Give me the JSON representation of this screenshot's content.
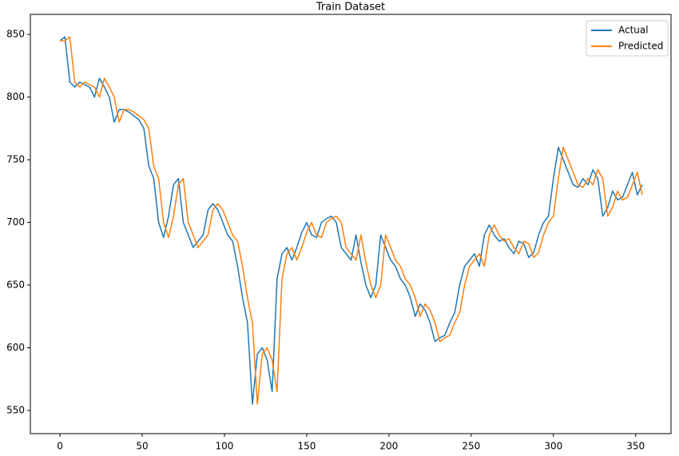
{
  "chart_data": {
    "type": "line",
    "title": "Train Dataset",
    "x": [
      0,
      3,
      6,
      9,
      12,
      15,
      18,
      21,
      24,
      27,
      30,
      33,
      36,
      39,
      42,
      45,
      48,
      51,
      54,
      57,
      60,
      63,
      66,
      69,
      72,
      75,
      78,
      81,
      84,
      87,
      90,
      93,
      96,
      99,
      102,
      105,
      108,
      111,
      114,
      117,
      120,
      123,
      126,
      129,
      132,
      135,
      138,
      141,
      144,
      147,
      150,
      153,
      156,
      159,
      162,
      165,
      168,
      171,
      174,
      177,
      180,
      183,
      186,
      189,
      192,
      195,
      198,
      201,
      204,
      207,
      210,
      213,
      216,
      219,
      222,
      225,
      228,
      231,
      234,
      237,
      240,
      243,
      246,
      249,
      252,
      255,
      258,
      261,
      264,
      267,
      270,
      273,
      276,
      279,
      282,
      285,
      288,
      291,
      294,
      297,
      300,
      303,
      306,
      309,
      312,
      315,
      318,
      321,
      324,
      327,
      330,
      333,
      336,
      339,
      342,
      345,
      348,
      351,
      354
    ],
    "series": [
      {
        "name": "Actual",
        "color": "#1f77b4",
        "values": [
          845,
          848,
          812,
          808,
          812,
          810,
          808,
          800,
          815,
          808,
          800,
          780,
          790,
          790,
          788,
          785,
          782,
          775,
          745,
          735,
          700,
          688,
          705,
          730,
          735,
          700,
          690,
          680,
          685,
          690,
          710,
          715,
          710,
          700,
          690,
          685,
          665,
          640,
          620,
          555,
          595,
          600,
          590,
          565,
          655,
          675,
          680,
          670,
          680,
          692,
          700,
          690,
          688,
          700,
          703,
          705,
          700,
          680,
          675,
          670,
          690,
          668,
          650,
          640,
          650,
          690,
          680,
          670,
          665,
          655,
          650,
          640,
          625,
          635,
          630,
          620,
          605,
          608,
          610,
          620,
          628,
          650,
          665,
          670,
          675,
          665,
          690,
          698,
          690,
          685,
          687,
          680,
          675,
          685,
          683,
          672,
          676,
          690,
          700,
          705,
          735,
          760,
          750,
          740,
          730,
          728,
          735,
          730,
          742,
          735,
          705,
          712,
          725,
          718,
          720,
          730,
          740,
          722,
          730
        ]
      },
      {
        "name": "Predicted",
        "color": "#ff7f0e",
        "values": [
          845,
          845,
          848,
          812,
          808,
          812,
          810,
          808,
          800,
          815,
          808,
          800,
          780,
          790,
          790,
          788,
          785,
          782,
          775,
          745,
          735,
          700,
          688,
          705,
          730,
          735,
          700,
          690,
          680,
          685,
          690,
          710,
          715,
          710,
          700,
          690,
          685,
          665,
          640,
          620,
          555,
          595,
          600,
          590,
          565,
          655,
          675,
          680,
          670,
          680,
          692,
          700,
          690,
          688,
          700,
          703,
          705,
          700,
          680,
          675,
          670,
          690,
          668,
          650,
          640,
          650,
          690,
          680,
          670,
          665,
          655,
          650,
          640,
          625,
          635,
          630,
          620,
          605,
          608,
          610,
          620,
          628,
          650,
          665,
          670,
          675,
          665,
          690,
          698,
          690,
          685,
          687,
          680,
          675,
          685,
          683,
          672,
          676,
          690,
          700,
          705,
          735,
          760,
          750,
          740,
          730,
          728,
          735,
          730,
          742,
          735,
          705,
          712,
          725,
          718,
          720,
          730,
          740,
          722
        ]
      }
    ],
    "xlim": [
      -18,
      371.5
    ],
    "ylim": [
      531.5,
      866
    ],
    "xticks": [
      0,
      50,
      100,
      150,
      200,
      250,
      300,
      350
    ],
    "yticks": [
      550,
      600,
      650,
      700,
      750,
      800,
      850
    ],
    "legend": "upper right",
    "grid": false
  }
}
